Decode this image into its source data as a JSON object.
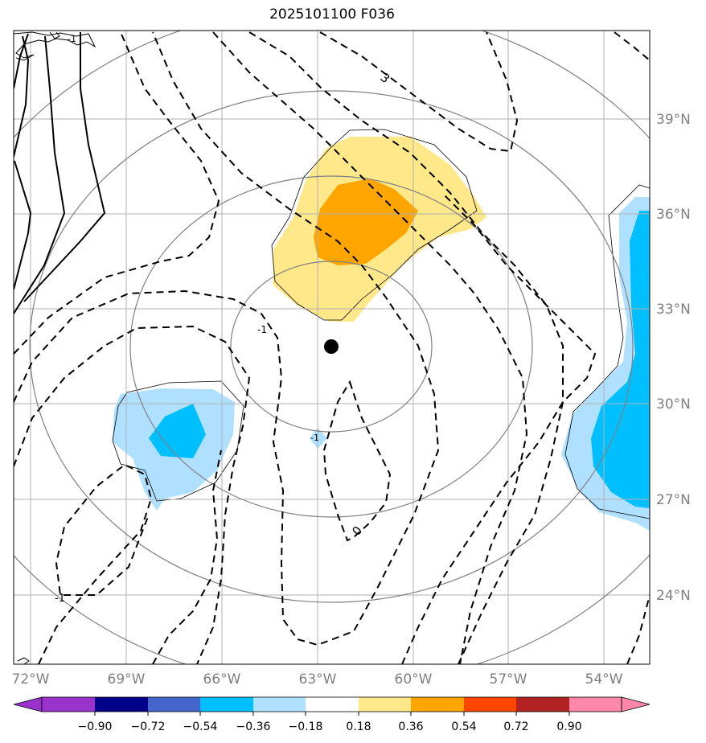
{
  "map": {
    "title": "2025101100 F036",
    "lon_labels": [
      {
        "lon": -72,
        "label": "72°W"
      },
      {
        "lon": -69,
        "label": "69°W"
      },
      {
        "lon": -66,
        "label": "66°W"
      },
      {
        "lon": -63,
        "label": "63°W"
      },
      {
        "lon": -60,
        "label": "60°W"
      },
      {
        "lon": -57,
        "label": "57°W"
      },
      {
        "lon": -54,
        "label": "54°W"
      }
    ],
    "lat_labels": [
      {
        "lat": 39,
        "label": "39°N"
      },
      {
        "lat": 36,
        "label": "36°N"
      },
      {
        "lat": 33,
        "label": "33°N"
      },
      {
        "lat": 30,
        "label": "30°N"
      },
      {
        "lat": 27,
        "label": "27°N"
      },
      {
        "lat": 24,
        "label": "24°N"
      }
    ],
    "center_marker": {
      "lon": -62.6,
      "lat": 31.8
    },
    "contour_labels": [
      "3",
      "-1",
      "0",
      "-1",
      "-1",
      "-1"
    ],
    "colorbar": {
      "ticks": [
        "−0.90",
        "−0.72",
        "−0.54",
        "−0.36",
        "−0.18",
        "0.18",
        "0.36",
        "0.54",
        "0.72",
        "0.90"
      ],
      "colors": [
        "#9933cc",
        "#000088",
        "#4466cc",
        "#00bfff",
        "#b0e0ff",
        "#ffffff",
        "#ffe88a",
        "#ffa500",
        "#ff4500",
        "#b22222",
        "#ff88aa"
      ]
    },
    "colors": {
      "pos_low": "#ffe88a",
      "pos_mid": "#ffa500",
      "neg_low": "#b0e0ff",
      "neg_mid": "#00bfff",
      "grid": "#b0b0b0",
      "tick_label": "#808080"
    }
  }
}
